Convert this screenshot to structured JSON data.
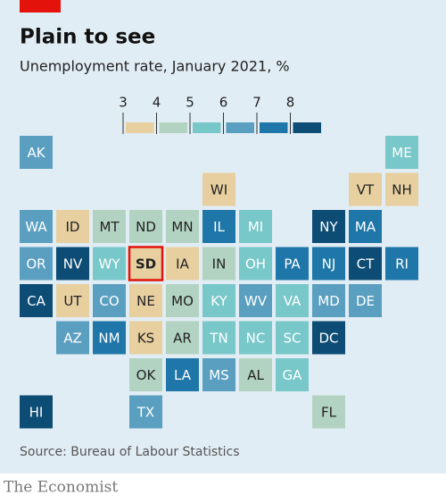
{
  "chart_data": {
    "type": "tile-map",
    "title": "Plain to see",
    "subtitle": "Unemployment rate, January 2021, %",
    "source": "Source: Bureau of Labour Statistics",
    "brand": "The Economist",
    "legend_ticks": [
      3,
      4,
      5,
      6,
      7,
      8
    ],
    "colors": [
      "#e7cfa0",
      "#b3d3c2",
      "#78c7c9",
      "#5a9fc0",
      "#1f76a8",
      "#0d4c74"
    ],
    "highlight": "SD",
    "highlight_color": "#e3120b",
    "categories": [
      "AK",
      "ME",
      "WI",
      "VT",
      "NH",
      "WA",
      "ID",
      "MT",
      "ND",
      "MN",
      "IL",
      "MI",
      "NY",
      "MA",
      "OR",
      "NV",
      "WY",
      "SD",
      "IA",
      "IN",
      "OH",
      "PA",
      "NJ",
      "CT",
      "RI",
      "CA",
      "UT",
      "CO",
      "NE",
      "MO",
      "KY",
      "WV",
      "VA",
      "MD",
      "DE",
      "AZ",
      "NM",
      "KS",
      "AR",
      "TN",
      "NC",
      "SC",
      "DC",
      "OK",
      "LA",
      "MS",
      "AL",
      "GA",
      "HI",
      "TX",
      "FL"
    ],
    "values": [
      6.5,
      5.5,
      3.5,
      3.5,
      3.5,
      6.5,
      3.5,
      4.5,
      4.5,
      4.5,
      7.5,
      5.5,
      8.5,
      7.5,
      6.5,
      8.5,
      5.5,
      3.5,
      3.5,
      4.5,
      5.5,
      7.5,
      7.5,
      8.5,
      7.5,
      8.5,
      3.5,
      6.5,
      3.5,
      4.5,
      5.5,
      6.5,
      5.5,
      6.5,
      6.5,
      6.5,
      7.5,
      3.5,
      4.5,
      5.5,
      5.5,
      5.5,
      8.5,
      4.5,
      7.5,
      6.5,
      4.5,
      5.5,
      8.5,
      6.5,
      4.5
    ]
  }
}
